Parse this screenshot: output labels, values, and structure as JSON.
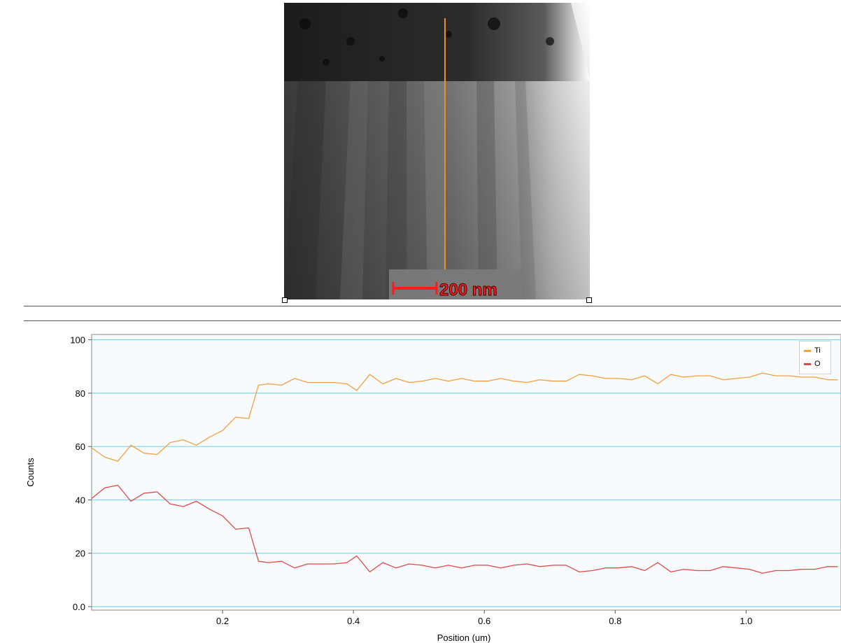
{
  "image": {
    "scale_bar_label": "200 nm",
    "line_color": "#f28a2a",
    "scale_bar_color": "#ff1a1a"
  },
  "chart_data": {
    "type": "line",
    "xlabel": "Position (um)",
    "ylabel": "Counts",
    "xlim": [
      0.0,
      1.145
    ],
    "ylim": [
      0,
      102
    ],
    "yticks": [
      0,
      20,
      40,
      60,
      80,
      100
    ],
    "ytick_labels": [
      "0.0",
      "20",
      "40",
      "60",
      "80",
      "100"
    ],
    "xticks": [
      0.2,
      0.4,
      0.6,
      0.8,
      1.0
    ],
    "xtick_labels": [
      "0.2",
      "0.4",
      "0.6",
      "0.8",
      "1.0"
    ],
    "grid": true,
    "grid_color": "#7fd6ea",
    "background": "#f8fbfd",
    "legend_placement": "top-right",
    "x": [
      0.0,
      0.02,
      0.04,
      0.06,
      0.08,
      0.1,
      0.12,
      0.14,
      0.16,
      0.18,
      0.2,
      0.22,
      0.24,
      0.255,
      0.27,
      0.29,
      0.31,
      0.33,
      0.35,
      0.37,
      0.39,
      0.405,
      0.425,
      0.445,
      0.465,
      0.485,
      0.505,
      0.525,
      0.545,
      0.565,
      0.585,
      0.605,
      0.625,
      0.645,
      0.665,
      0.685,
      0.705,
      0.725,
      0.745,
      0.765,
      0.785,
      0.805,
      0.825,
      0.845,
      0.865,
      0.885,
      0.905,
      0.925,
      0.945,
      0.965,
      0.985,
      1.005,
      1.025,
      1.045,
      1.065,
      1.085,
      1.105,
      1.125,
      1.14
    ],
    "series": [
      {
        "name": "Ti",
        "color": "#f0a040",
        "values": [
          59.5,
          56,
          54.5,
          60.5,
          57.5,
          57,
          61.5,
          62.5,
          60.5,
          63.5,
          66,
          71,
          70.5,
          83,
          83.5,
          83,
          85.5,
          84,
          84,
          84,
          83.5,
          81,
          87,
          83.5,
          85.5,
          84,
          84.5,
          85.5,
          84.5,
          85.5,
          84.5,
          84.5,
          85.5,
          84.5,
          84,
          85,
          84.5,
          84.5,
          87,
          86.5,
          85.5,
          85.5,
          85,
          86.5,
          83.5,
          87,
          86,
          86.5,
          86.5,
          85,
          85.5,
          86,
          87.5,
          86.5,
          86.5,
          86,
          86,
          85,
          85
        ]
      },
      {
        "name": "O",
        "color": "#e04848",
        "values": [
          40.5,
          44.5,
          45.5,
          39.5,
          42.5,
          43,
          38.5,
          37.5,
          39.5,
          36.5,
          34,
          29,
          29.5,
          17,
          16.5,
          17,
          14.5,
          16,
          16,
          16,
          16.5,
          19,
          13,
          16.5,
          14.5,
          16,
          15.5,
          14.5,
          15.5,
          14.5,
          15.5,
          15.5,
          14.5,
          15.5,
          16,
          15,
          15.5,
          15.5,
          13,
          13.5,
          14.5,
          14.5,
          15,
          13.5,
          16.5,
          13,
          14,
          13.5,
          13.5,
          15,
          14.5,
          14,
          12.5,
          13.5,
          13.5,
          14,
          14,
          15,
          15
        ]
      }
    ]
  }
}
